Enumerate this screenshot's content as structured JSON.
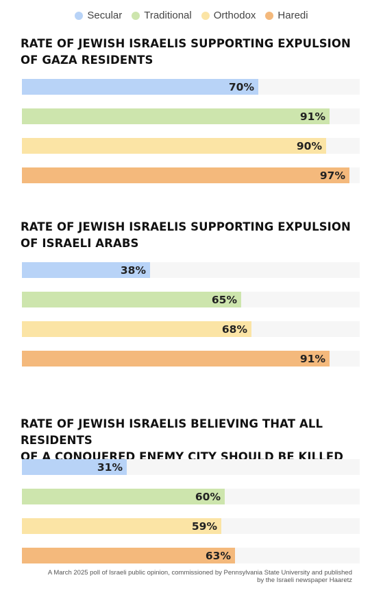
{
  "colors": {
    "Secular": "#b8d3f7",
    "Traditional": "#cde5ad",
    "Orthodox": "#fbe4a5",
    "Haredi": "#f4b97c"
  },
  "legend": [
    "Secular",
    "Traditional",
    "Orthodox",
    "Haredi"
  ],
  "chart_data": [
    {
      "type": "bar",
      "orientation": "horizontal",
      "title": "RATE OF JEWISH ISRAELIS SUPPORTING EXPULSION OF GAZA RESIDENTS",
      "title_lines": [
        "RATE OF JEWISH ISRAELIS SUPPORTING EXPULSION",
        "OF GAZA RESIDENTS"
      ],
      "categories": [
        "Secular",
        "Traditional",
        "Orthodox",
        "Haredi"
      ],
      "values": [
        70,
        91,
        90,
        97
      ],
      "labels": [
        "70%",
        "91%",
        "90%",
        "97%"
      ],
      "xlim": [
        0,
        100
      ],
      "grid": false
    },
    {
      "type": "bar",
      "orientation": "horizontal",
      "title": "RATE OF JEWISH ISRAELIS SUPPORTING EXPULSION OF ISRAELI ARABS",
      "title_lines": [
        "RATE OF JEWISH ISRAELIS SUPPORTING EXPULSION",
        "OF ISRAELI ARABS"
      ],
      "categories": [
        "Secular",
        "Traditional",
        "Orthodox",
        "Haredi"
      ],
      "values": [
        38,
        65,
        68,
        91
      ],
      "labels": [
        "38%",
        "65%",
        "68%",
        "91%"
      ],
      "xlim": [
        0,
        100
      ],
      "grid": false
    },
    {
      "type": "bar",
      "orientation": "horizontal",
      "title": "RATE OF JEWISH ISRAELIS BELIEVING THAT ALL RESIDENTS OF A CONQUERED ENEMY CITY SHOULD BE KILLED",
      "title_lines": [
        "RATE OF JEWISH ISRAELIS BELIEVING THAT ALL RESIDENTS",
        "OF A CONQUERED ENEMY CITY SHOULD BE KILLED"
      ],
      "categories": [
        "Secular",
        "Traditional",
        "Orthodox",
        "Haredi"
      ],
      "values": [
        31,
        60,
        59,
        63
      ],
      "labels": [
        "31%",
        "60%",
        "59%",
        "63%"
      ],
      "xlim": [
        0,
        100
      ],
      "grid": false
    }
  ],
  "footnote": {
    "line1": "A March 2025 poll of Israeli public opinion, commissioned by Pennsylvania State University and published",
    "line2": "by the Israeli newspaper Haaretz"
  }
}
